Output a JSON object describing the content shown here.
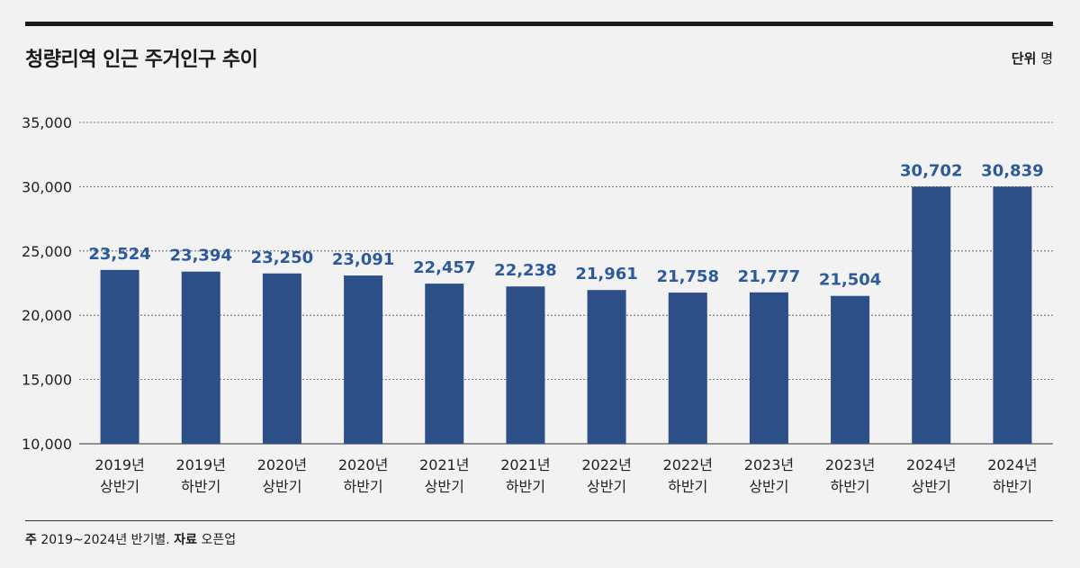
{
  "header": {
    "title": "청량리역 인근 주거인구 추이",
    "unit_label": "단위",
    "unit_value": "명"
  },
  "footer": {
    "note_label": "주",
    "note_text": "2019~2024년 반기별.",
    "source_label": "자료",
    "source_text": "오픈업"
  },
  "colors": {
    "bar": "#2d4f87",
    "value_label": "#2d5a9a",
    "grid": "#555555"
  },
  "chart_data": {
    "type": "bar",
    "title": "청량리역 인근 주거인구 추이",
    "xlabel": "",
    "ylabel": "",
    "ylim": [
      10000,
      35000
    ],
    "yticks": [
      "10,000",
      "15,000",
      "20,000",
      "25,000",
      "30,000",
      "35,000"
    ],
    "grid": "dashed-horizontal",
    "categories": [
      [
        "2019년",
        "상반기"
      ],
      [
        "2019년",
        "하반기"
      ],
      [
        "2020년",
        "상반기"
      ],
      [
        "2020년",
        "하반기"
      ],
      [
        "2021년",
        "상반기"
      ],
      [
        "2021년",
        "하반기"
      ],
      [
        "2022년",
        "상반기"
      ],
      [
        "2022년",
        "하반기"
      ],
      [
        "2023년",
        "상반기"
      ],
      [
        "2023년",
        "하반기"
      ],
      [
        "2024년",
        "상반기"
      ],
      [
        "2024년",
        "하반기"
      ]
    ],
    "values": [
      23524,
      23394,
      23250,
      23091,
      22457,
      22238,
      21961,
      21758,
      21777,
      21504,
      30702,
      30839
    ],
    "value_labels": [
      "23,524",
      "23,394",
      "23,250",
      "23,091",
      "22,457",
      "22,238",
      "21,961",
      "21,758",
      "21,777",
      "21,504",
      "30,702",
      "30,839"
    ]
  }
}
